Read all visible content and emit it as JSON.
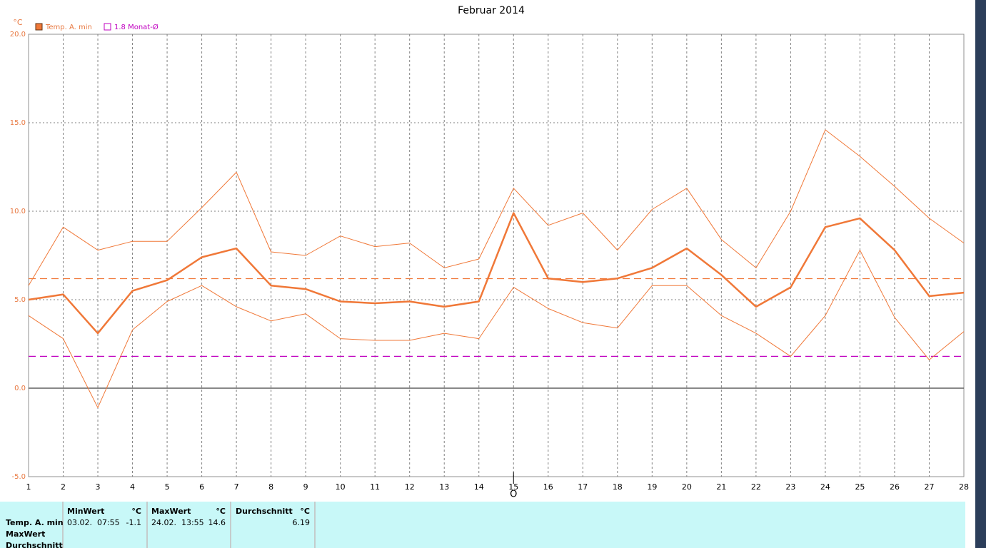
{
  "chart_data": {
    "type": "line",
    "title": "Februar 2014",
    "y_unit": "°C",
    "categories": [
      "1",
      "2",
      "3",
      "4",
      "5",
      "6",
      "7",
      "8",
      "9",
      "10",
      "11",
      "12",
      "13",
      "14",
      "15",
      "16",
      "17",
      "18",
      "19",
      "20",
      "21",
      "22",
      "23",
      "24",
      "25",
      "26",
      "27",
      "28"
    ],
    "series": [
      {
        "name": "Temp. A. min",
        "color": "#f07838",
        "width": 2.5,
        "values": [
          5.0,
          5.3,
          3.1,
          5.5,
          6.1,
          7.4,
          7.9,
          5.8,
          5.6,
          4.9,
          4.8,
          4.9,
          4.6,
          4.9,
          9.9,
          6.2,
          6.0,
          6.2,
          6.8,
          7.9,
          6.4,
          4.6,
          5.7,
          9.1,
          9.6,
          7.8,
          5.2,
          5.4
        ]
      },
      {
        "color": "#f07838",
        "width": 1,
        "values": [
          5.8,
          9.1,
          7.8,
          8.3,
          8.3,
          10.2,
          12.2,
          7.7,
          7.5,
          8.6,
          8.0,
          8.2,
          6.8,
          7.3,
          11.3,
          9.2,
          9.9,
          7.8,
          10.1,
          11.3,
          8.4,
          6.8,
          10.0,
          14.6,
          13.1,
          11.4,
          9.6,
          8.2
        ]
      },
      {
        "color": "#f07838",
        "width": 1,
        "values": [
          4.1,
          2.8,
          -1.1,
          3.3,
          4.9,
          5.8,
          4.6,
          3.8,
          4.2,
          2.8,
          2.7,
          2.7,
          3.1,
          2.8,
          5.7,
          4.5,
          3.7,
          3.4,
          5.8,
          5.8,
          4.1,
          3.1,
          1.8,
          4.1,
          7.8,
          4.0,
          1.6,
          3.2
        ]
      }
    ],
    "reference_lines": [
      {
        "value": 6.19,
        "color": "#f07838"
      },
      {
        "value": 1.8,
        "label": "1.8 Monat-Ø",
        "color": "#c000c0"
      }
    ],
    "ylim": [
      -5,
      20
    ],
    "yticks": [
      {
        "value": -5,
        "label": "-5.0"
      },
      {
        "value": 0,
        "label": "0.0"
      },
      {
        "value": 5,
        "label": "5.0"
      },
      {
        "value": 10,
        "label": "10.0"
      },
      {
        "value": 15,
        "label": "15.0"
      },
      {
        "value": 20,
        "label": "20.0"
      }
    ],
    "grid": true,
    "cursor_label": "O"
  },
  "table": {
    "header": [
      "MinWert",
      "°C",
      "MaxWert",
      "°C",
      "Durchschnitt",
      "°C"
    ],
    "row": [
      "03.02.  07:55",
      "-1.1",
      "24.02.  13:55",
      "14.6",
      "6.19"
    ],
    "row_labels": [
      "Temp. A. min",
      "MaxWert",
      "Durchschnitt"
    ]
  }
}
